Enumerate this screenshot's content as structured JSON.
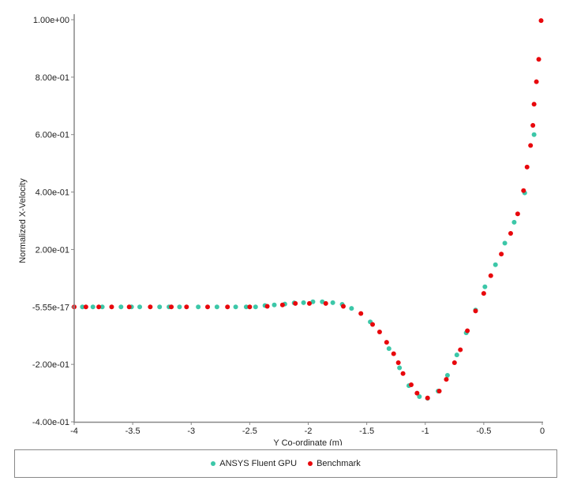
{
  "chart_data": {
    "type": "scatter",
    "title": "",
    "xlabel": "Y Co-ordinate (m)",
    "ylabel": "Normalized X-Velocity",
    "xlim": [
      -4,
      0
    ],
    "ylim": [
      -0.4,
      1.0
    ],
    "xticks": [
      -4,
      -3.5,
      -3,
      -2.5,
      -2,
      -1.5,
      -1,
      -0.5,
      0
    ],
    "xtick_labels": [
      "-4",
      "-3.5",
      "-3",
      "-2.5",
      "-2",
      "-1.5",
      "-1",
      "-0.5",
      "0"
    ],
    "yticks": [
      -0.4,
      -0.2,
      0,
      0.2,
      0.4,
      0.6,
      0.8,
      1.0
    ],
    "ytick_labels": [
      "-4.00e-01",
      "-2.00e-01",
      "-5.55e-17",
      "2.00e-01",
      "4.00e-01",
      "6.00e-01",
      "8.00e-01",
      "1.00e+00"
    ],
    "grid": false,
    "legend_position": "bottom",
    "series": [
      {
        "name": "ANSYS Fluent GPU",
        "color": "#3cc7a8",
        "x": [
          -3.93,
          -3.84,
          -3.76,
          -3.6,
          -3.51,
          -3.44,
          -3.27,
          -3.19,
          -3.1,
          -2.94,
          -2.78,
          -2.62,
          -2.53,
          -2.45,
          -2.37,
          -2.29,
          -2.2,
          -2.12,
          -2.04,
          -1.96,
          -1.88,
          -1.79,
          -1.71,
          -1.63,
          -1.47,
          -1.31,
          -1.22,
          -1.14,
          -1.05,
          -0.98,
          -0.89,
          -0.81,
          -0.73,
          -0.65,
          -0.57,
          -0.49,
          -0.4,
          -0.32,
          -0.24,
          -0.15,
          -0.07
        ],
        "y": [
          0,
          0,
          0,
          0,
          0,
          0,
          0,
          0,
          0,
          0,
          0,
          0,
          0,
          0,
          0.005,
          0.007,
          0.01,
          0.014,
          0.015,
          0.018,
          0.018,
          0.015,
          0.009,
          -0.005,
          -0.052,
          -0.145,
          -0.212,
          -0.274,
          -0.312,
          -0.318,
          -0.293,
          -0.238,
          -0.167,
          -0.09,
          -0.011,
          0.07,
          0.147,
          0.222,
          0.295,
          0.397,
          0.6
        ]
      },
      {
        "name": "Benchmark",
        "color": "#e8070c",
        "x": [
          -4.0,
          -3.9,
          -3.79,
          -3.68,
          -3.53,
          -3.35,
          -3.17,
          -3.04,
          -2.86,
          -2.69,
          -2.5,
          -2.35,
          -2.22,
          -2.11,
          -1.99,
          -1.85,
          -1.7,
          -1.55,
          -1.45,
          -1.39,
          -1.33,
          -1.27,
          -1.23,
          -1.19,
          -1.12,
          -1.07,
          -0.98,
          -0.88,
          -0.82,
          -0.75,
          -0.7,
          -0.64,
          -0.57,
          -0.5,
          -0.44,
          -0.35,
          -0.27,
          -0.21,
          -0.16,
          -0.13,
          -0.1,
          -0.08,
          -0.07,
          -0.05,
          -0.03,
          -0.01
        ],
        "y": [
          0,
          0,
          0,
          0,
          0,
          0,
          0,
          0,
          0,
          0,
          0,
          0.002,
          0.007,
          0.012,
          0.012,
          0.012,
          0.002,
          -0.023,
          -0.061,
          -0.087,
          -0.123,
          -0.163,
          -0.194,
          -0.232,
          -0.271,
          -0.3,
          -0.317,
          -0.293,
          -0.252,
          -0.194,
          -0.149,
          -0.083,
          -0.014,
          0.047,
          0.109,
          0.184,
          0.256,
          0.324,
          0.405,
          0.487,
          0.562,
          0.632,
          0.706,
          0.784,
          0.862,
          0.997
        ]
      }
    ]
  }
}
